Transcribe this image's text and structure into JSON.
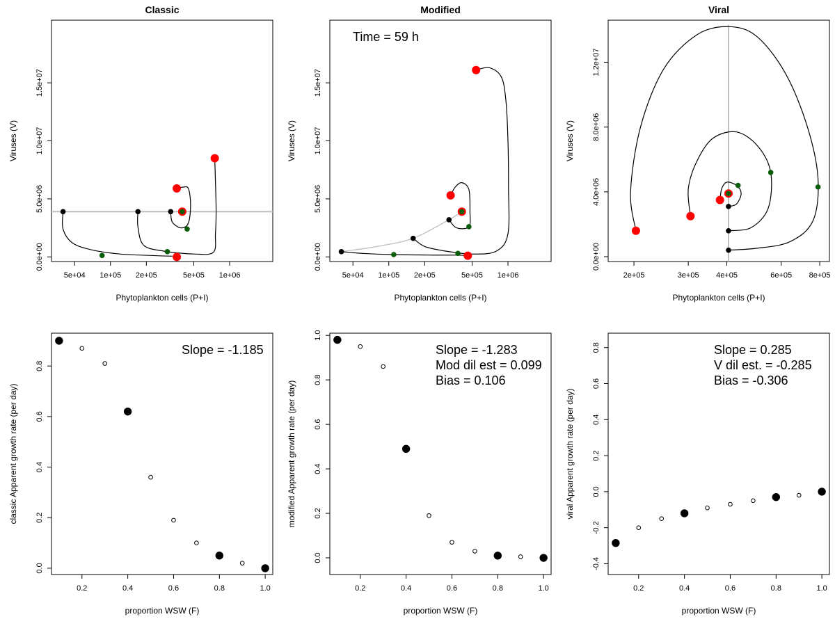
{
  "colors": {
    "red": "#ff0000",
    "green": "#0a5e0a",
    "black": "#000000",
    "grey": "#bebebe"
  },
  "chart_data": [
    {
      "id": "classic-phase",
      "type": "line",
      "title": "Classic",
      "xlabel": "Phytoplankton cells (P+I)",
      "ylabel": "Viruses (V)",
      "xscale": "log",
      "xlim": [
        32000,
        2300000
      ],
      "ylim": [
        -400000,
        20400000
      ],
      "xticks": [
        {
          "v": 50000,
          "label": "5e+04"
        },
        {
          "v": 100000,
          "label": "1e+05"
        },
        {
          "v": 200000,
          "label": "2e+05"
        },
        {
          "v": 500000,
          "label": "5e+05"
        },
        {
          "v": 1000000,
          "label": "1e+06"
        }
      ],
      "yticks": [
        {
          "v": 0,
          "label": "0.0e+00"
        },
        {
          "v": 5000000,
          "label": "5.0e+06"
        },
        {
          "v": 10000000,
          "label": "1.0e+07"
        },
        {
          "v": 15000000,
          "label": "1.5e+07"
        }
      ],
      "hline": 3900000,
      "trajectories": [
        [
          [
            40000,
            3900000
          ],
          [
            40000,
            2400000
          ],
          [
            48000,
            1200000
          ],
          [
            70000,
            600000
          ],
          [
            120000,
            250000
          ],
          [
            220000,
            120000
          ],
          [
            330000,
            60000
          ]
        ],
        [
          [
            170000,
            3900000
          ],
          [
            170000,
            2600000
          ],
          [
            190000,
            1000000
          ],
          [
            280000,
            500000
          ],
          [
            500000,
            250000
          ],
          [
            730000,
            400000
          ],
          [
            760000,
            2000000
          ],
          [
            770000,
            4000000
          ],
          [
            760000,
            6500000
          ],
          [
            750000,
            8500000
          ]
        ],
        [
          [
            320000,
            3900000
          ],
          [
            330000,
            3000000
          ],
          [
            390000,
            2500000
          ],
          [
            450000,
            2900000
          ],
          [
            470000,
            4500000
          ],
          [
            450000,
            5900000
          ],
          [
            400000,
            6000000
          ],
          [
            360000,
            5900000
          ]
        ]
      ],
      "points": [
        {
          "x": 40000,
          "y": 3900000,
          "color": "black",
          "size": "small"
        },
        {
          "x": 170000,
          "y": 3900000,
          "color": "black",
          "size": "small"
        },
        {
          "x": 320000,
          "y": 3900000,
          "color": "black",
          "size": "small"
        },
        {
          "x": 85000,
          "y": 120000,
          "color": "green",
          "size": "small"
        },
        {
          "x": 300000,
          "y": 450000,
          "color": "green",
          "size": "small"
        },
        {
          "x": 440000,
          "y": 2400000,
          "color": "green",
          "size": "small"
        },
        {
          "x": 360000,
          "y": 0,
          "color": "red",
          "size": "big"
        },
        {
          "x": 750000,
          "y": 8500000,
          "color": "red",
          "size": "big"
        },
        {
          "x": 360000,
          "y": 5900000,
          "color": "red",
          "size": "big"
        },
        {
          "x": 400000,
          "y": 3900000,
          "color": "red",
          "size": "big"
        },
        {
          "x": 400000,
          "y": 3900000,
          "color": "green",
          "size": "small"
        }
      ]
    },
    {
      "id": "modified-phase",
      "type": "line",
      "title": "Modified",
      "annotation": [
        "Time =  59  h"
      ],
      "xlabel": "Phytoplankton cells (P+I)",
      "ylabel": "Viruses (V)",
      "xscale": "log",
      "xlim": [
        32000,
        2300000
      ],
      "ylim": [
        -400000,
        20400000
      ],
      "xticks": [
        {
          "v": 50000,
          "label": "5e+04"
        },
        {
          "v": 100000,
          "label": "1e+05"
        },
        {
          "v": 200000,
          "label": "2e+05"
        },
        {
          "v": 500000,
          "label": "5e+05"
        },
        {
          "v": 1000000,
          "label": "1e+06"
        }
      ],
      "yticks": [
        {
          "v": 0,
          "label": "0.0e+00"
        },
        {
          "v": 5000000,
          "label": "5.0e+06"
        },
        {
          "v": 10000000,
          "label": "1.0e+07"
        },
        {
          "v": 15000000,
          "label": "1.5e+07"
        }
      ],
      "greycurve": [
        [
          40000,
          450000
        ],
        [
          80000,
          900000
        ],
        [
          160000,
          1600000
        ],
        [
          320000,
          3200000
        ],
        [
          410000,
          3900000
        ]
      ],
      "trajectories": [
        [
          [
            40000,
            450000
          ],
          [
            60000,
            300000
          ],
          [
            110000,
            200000
          ],
          [
            220000,
            160000
          ],
          [
            380000,
            150000
          ],
          [
            460000,
            100000
          ]
        ],
        [
          [
            160000,
            1600000
          ],
          [
            200000,
            900000
          ],
          [
            300000,
            500000
          ],
          [
            500000,
            250000
          ],
          [
            800000,
            500000
          ],
          [
            1000000,
            2000000
          ],
          [
            1010000,
            6000000
          ],
          [
            1000000,
            10000000
          ],
          [
            960000,
            13500000
          ],
          [
            880000,
            15500000
          ],
          [
            700000,
            16300000
          ],
          [
            540000,
            16100000
          ]
        ],
        [
          [
            320000,
            3200000
          ],
          [
            370000,
            2500000
          ],
          [
            470000,
            2600000
          ],
          [
            480000,
            3900000
          ],
          [
            470000,
            5800000
          ],
          [
            410000,
            6400000
          ],
          [
            360000,
            6000000
          ],
          [
            330000,
            5300000
          ]
        ]
      ],
      "points": [
        {
          "x": 40000,
          "y": 450000,
          "color": "black",
          "size": "small"
        },
        {
          "x": 160000,
          "y": 1600000,
          "color": "black",
          "size": "small"
        },
        {
          "x": 320000,
          "y": 3200000,
          "color": "black",
          "size": "small"
        },
        {
          "x": 110000,
          "y": 200000,
          "color": "green",
          "size": "small"
        },
        {
          "x": 380000,
          "y": 300000,
          "color": "green",
          "size": "small"
        },
        {
          "x": 470000,
          "y": 2600000,
          "color": "green",
          "size": "small"
        },
        {
          "x": 460000,
          "y": 100000,
          "color": "red",
          "size": "big"
        },
        {
          "x": 540000,
          "y": 16100000,
          "color": "red",
          "size": "big"
        },
        {
          "x": 330000,
          "y": 5300000,
          "color": "red",
          "size": "big"
        },
        {
          "x": 410000,
          "y": 3900000,
          "color": "red",
          "size": "big"
        },
        {
          "x": 410000,
          "y": 3900000,
          "color": "green",
          "size": "small"
        }
      ]
    },
    {
      "id": "viral-phase",
      "type": "line",
      "title": "Viral",
      "xlabel": "Phytoplankton cells (P+I)",
      "ylabel": "Viruses (V)",
      "xscale": "log",
      "xlim": [
        165000,
        860000
      ],
      "ylim": [
        -300000,
        14600000
      ],
      "xticks": [
        {
          "v": 200000,
          "label": "2e+05"
        },
        {
          "v": 300000,
          "label": "3e+05"
        },
        {
          "v": 400000,
          "label": "4e+05"
        },
        {
          "v": 600000,
          "label": "6e+05"
        },
        {
          "v": 800000,
          "label": "8e+05"
        }
      ],
      "yticks": [
        {
          "v": 0,
          "label": "0.0e+00"
        },
        {
          "v": 4000000,
          "label": "4.0e+06"
        },
        {
          "v": 8000000,
          "label": "8.0e+06"
        },
        {
          "v": 12000000,
          "label": "1.2e+07"
        }
      ],
      "vline": 405000,
      "trajectories": [
        [
          [
            405000,
            400000
          ],
          [
            500000,
            520000
          ],
          [
            640000,
            920000
          ],
          [
            760000,
            2200000
          ],
          [
            790000,
            4800000
          ],
          [
            730000,
            8000000
          ],
          [
            620000,
            11300000
          ],
          [
            500000,
            13600000
          ],
          [
            405000,
            14200000
          ],
          [
            320000,
            13700000
          ],
          [
            250000,
            11600000
          ],
          [
            210000,
            8000000
          ],
          [
            195000,
            4000000
          ],
          [
            203000,
            1600000
          ]
        ],
        [
          [
            405000,
            1600000
          ],
          [
            480000,
            1800000
          ],
          [
            545000,
            3000000
          ],
          [
            555000,
            5200000
          ],
          [
            505000,
            6800000
          ],
          [
            430000,
            7700000
          ],
          [
            360000,
            7300000
          ],
          [
            320000,
            5900000
          ],
          [
            300000,
            4200000
          ],
          [
            305000,
            2500000
          ]
        ],
        [
          [
            405000,
            3100000
          ],
          [
            430000,
            3250000
          ],
          [
            445000,
            3900000
          ],
          [
            430000,
            4400000
          ],
          [
            400000,
            4600000
          ],
          [
            385000,
            4200000
          ],
          [
            380000,
            3500000
          ]
        ]
      ],
      "points": [
        {
          "x": 405000,
          "y": 400000,
          "color": "black",
          "size": "small"
        },
        {
          "x": 405000,
          "y": 1600000,
          "color": "black",
          "size": "small"
        },
        {
          "x": 405000,
          "y": 3100000,
          "color": "black",
          "size": "small"
        },
        {
          "x": 790000,
          "y": 4300000,
          "color": "green",
          "size": "small"
        },
        {
          "x": 555000,
          "y": 5200000,
          "color": "green",
          "size": "small"
        },
        {
          "x": 435000,
          "y": 4400000,
          "color": "green",
          "size": "small"
        },
        {
          "x": 203000,
          "y": 1600000,
          "color": "red",
          "size": "big"
        },
        {
          "x": 305000,
          "y": 2500000,
          "color": "red",
          "size": "big"
        },
        {
          "x": 380000,
          "y": 3500000,
          "color": "red",
          "size": "big"
        },
        {
          "x": 405000,
          "y": 3900000,
          "color": "red",
          "size": "big"
        },
        {
          "x": 405000,
          "y": 3900000,
          "color": "green",
          "size": "small"
        }
      ]
    },
    {
      "id": "classic-growth",
      "type": "scatter",
      "xlabel": "proportion WSW  (F)",
      "ylabel": "classic Apparent growth rate (per day)",
      "annotation": [
        "Slope =  -1.185"
      ],
      "xlim": [
        0.067,
        1.033
      ],
      "ylim": [
        -0.025,
        0.93
      ],
      "xticks": [
        {
          "v": 0.2,
          "label": "0.2"
        },
        {
          "v": 0.4,
          "label": "0.4"
        },
        {
          "v": 0.6,
          "label": "0.6"
        },
        {
          "v": 0.8,
          "label": "0.8"
        },
        {
          "v": 1.0,
          "label": "1.0"
        }
      ],
      "yticks": [
        {
          "v": 0,
          "label": "0.0"
        },
        {
          "v": 0.2,
          "label": "0.2"
        },
        {
          "v": 0.4,
          "label": "0.4"
        },
        {
          "v": 0.6,
          "label": "0.6"
        },
        {
          "v": 0.8,
          "label": "0.8"
        }
      ],
      "points": [
        {
          "x": 0.1,
          "y": 0.9,
          "filled": true
        },
        {
          "x": 0.2,
          "y": 0.87,
          "filled": false
        },
        {
          "x": 0.3,
          "y": 0.81,
          "filled": false
        },
        {
          "x": 0.4,
          "y": 0.62,
          "filled": true
        },
        {
          "x": 0.5,
          "y": 0.36,
          "filled": false
        },
        {
          "x": 0.6,
          "y": 0.19,
          "filled": false
        },
        {
          "x": 0.7,
          "y": 0.1,
          "filled": false
        },
        {
          "x": 0.8,
          "y": 0.05,
          "filled": true
        },
        {
          "x": 0.9,
          "y": 0.02,
          "filled": false
        },
        {
          "x": 1.0,
          "y": 0.0,
          "filled": true
        }
      ]
    },
    {
      "id": "modified-growth",
      "type": "scatter",
      "xlabel": "proportion WSW  (F)",
      "ylabel": "modified Apparent growth rate (per day)",
      "annotation": [
        "Slope =  -1.283",
        "Mod dil est =  0.099",
        "Bias =  0.106"
      ],
      "xlim": [
        0.067,
        1.033
      ],
      "ylim": [
        -0.075,
        1.01
      ],
      "xticks": [
        {
          "v": 0.2,
          "label": "0.2"
        },
        {
          "v": 0.4,
          "label": "0.4"
        },
        {
          "v": 0.6,
          "label": "0.6"
        },
        {
          "v": 0.8,
          "label": "0.8"
        },
        {
          "v": 1.0,
          "label": "1.0"
        }
      ],
      "yticks": [
        {
          "v": 0,
          "label": "0.0"
        },
        {
          "v": 0.2,
          "label": "0.2"
        },
        {
          "v": 0.4,
          "label": "0.4"
        },
        {
          "v": 0.6,
          "label": "0.6"
        },
        {
          "v": 0.8,
          "label": "0.8"
        },
        {
          "v": 1.0,
          "label": "1.0"
        }
      ],
      "points": [
        {
          "x": 0.1,
          "y": 0.98,
          "filled": true
        },
        {
          "x": 0.2,
          "y": 0.95,
          "filled": false
        },
        {
          "x": 0.3,
          "y": 0.86,
          "filled": false
        },
        {
          "x": 0.4,
          "y": 0.49,
          "filled": true
        },
        {
          "x": 0.5,
          "y": 0.19,
          "filled": false
        },
        {
          "x": 0.6,
          "y": 0.07,
          "filled": false
        },
        {
          "x": 0.7,
          "y": 0.03,
          "filled": false
        },
        {
          "x": 0.8,
          "y": 0.01,
          "filled": true
        },
        {
          "x": 0.9,
          "y": 0.005,
          "filled": false
        },
        {
          "x": 1.0,
          "y": 0.0,
          "filled": true
        }
      ]
    },
    {
      "id": "viral-growth",
      "type": "scatter",
      "xlabel": "proportion WSW  (F)",
      "ylabel": "viral Apparent growth rate (per day)",
      "annotation": [
        "Slope =  0.285",
        "V dil est. =  -0.285",
        "Bias =  -0.306"
      ],
      "xlim": [
        0.067,
        1.033
      ],
      "ylim": [
        -0.46,
        0.88
      ],
      "xticks": [
        {
          "v": 0.2,
          "label": "0.2"
        },
        {
          "v": 0.4,
          "label": "0.4"
        },
        {
          "v": 0.6,
          "label": "0.6"
        },
        {
          "v": 0.8,
          "label": "0.8"
        },
        {
          "v": 1.0,
          "label": "1.0"
        }
      ],
      "yticks": [
        {
          "v": -0.4,
          "label": "-0.4"
        },
        {
          "v": -0.2,
          "label": "-0.2"
        },
        {
          "v": 0,
          "label": "0.0"
        },
        {
          "v": 0.2,
          "label": "0.2"
        },
        {
          "v": 0.4,
          "label": "0.4"
        },
        {
          "v": 0.6,
          "label": "0.6"
        },
        {
          "v": 0.8,
          "label": "0.8"
        }
      ],
      "points": [
        {
          "x": 0.1,
          "y": -0.285,
          "filled": true
        },
        {
          "x": 0.2,
          "y": -0.2,
          "filled": false
        },
        {
          "x": 0.3,
          "y": -0.15,
          "filled": false
        },
        {
          "x": 0.4,
          "y": -0.12,
          "filled": true
        },
        {
          "x": 0.5,
          "y": -0.09,
          "filled": false
        },
        {
          "x": 0.6,
          "y": -0.07,
          "filled": false
        },
        {
          "x": 0.7,
          "y": -0.05,
          "filled": false
        },
        {
          "x": 0.8,
          "y": -0.03,
          "filled": true
        },
        {
          "x": 0.9,
          "y": -0.02,
          "filled": false
        },
        {
          "x": 1.0,
          "y": 0.0,
          "filled": true
        }
      ]
    }
  ]
}
